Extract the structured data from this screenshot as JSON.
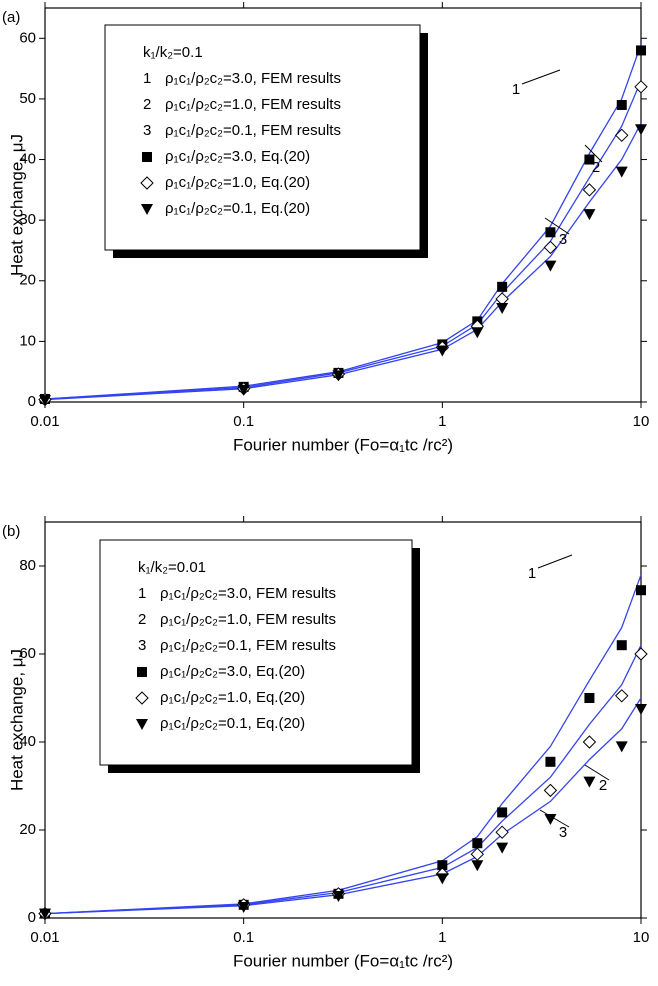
{
  "chart_data": [
    {
      "type": "line",
      "panel_label": "(a)",
      "x_label": "Fourier number (Fo=α₁tc /rc²)",
      "y_label": "Heat exchange, μJ",
      "x_log": true,
      "xlim": [
        0.01,
        10
      ],
      "xticks": [
        0.01,
        0.1,
        1,
        10
      ],
      "ylim": [
        0,
        65
      ],
      "yticks": [
        0,
        10,
        20,
        30,
        40,
        50,
        60
      ],
      "legend_title": "k₁/k₂=0.1",
      "x": [
        0.01,
        0.1,
        0.3,
        1,
        1.5,
        2,
        3.5,
        5.5,
        8,
        10
      ],
      "series": [
        {
          "type": "line",
          "label": "1",
          "name": "ρ₁c₁/ρ₂c₂=3.0, FEM results",
          "color": "#3344ee",
          "values": [
            0.5,
            2.6,
            5,
            9.8,
            13.5,
            19.5,
            29,
            41,
            50,
            59
          ]
        },
        {
          "type": "line",
          "label": "2",
          "name": "ρ₁c₁/ρ₂c₂=1.0, FEM results",
          "color": "#3344ee",
          "values": [
            0.5,
            2.4,
            4.8,
            9.2,
            12.8,
            18,
            26.5,
            37,
            45.5,
            53
          ]
        },
        {
          "type": "line",
          "label": "3",
          "name": "ρ₁c₁/ρ₂c₂=0.1, FEM results",
          "color": "#3344ee",
          "values": [
            0.4,
            2.2,
            4.5,
            8.7,
            12,
            16.5,
            24,
            33,
            40,
            46
          ]
        },
        {
          "type": "scatter",
          "marker": "square",
          "name": "ρ₁c₁/ρ₂c₂=3.0, Eq.(20)",
          "color": "#000000",
          "values": [
            0.5,
            2.5,
            4.8,
            9.5,
            13.3,
            19,
            28,
            40,
            49,
            58
          ]
        },
        {
          "type": "scatter",
          "marker": "diamond",
          "name": "ρ₁c₁/ρ₂c₂=1.0, Eq.(20)",
          "color": "#000000",
          "values": [
            0.4,
            2.2,
            4.6,
            9,
            12.5,
            17,
            25.5,
            35,
            44,
            52
          ]
        },
        {
          "type": "scatter",
          "marker": "triangle-down",
          "name": "ρ₁c₁/ρ₂c₂=0.1, Eq.(20)",
          "color": "#000000",
          "values": [
            0.3,
            2,
            4.4,
            8.5,
            11.5,
            15.5,
            22.5,
            31,
            38,
            45
          ]
        }
      ]
    },
    {
      "type": "line",
      "panel_label": "(b)",
      "x_label": "Fourier number (Fo=α₁tc /rc²)",
      "y_label": "Heat exchange, μJ",
      "x_log": true,
      "xlim": [
        0.01,
        10
      ],
      "xticks": [
        0.01,
        0.1,
        1,
        10
      ],
      "ylim": [
        0,
        90
      ],
      "yticks": [
        0,
        20,
        40,
        60,
        80
      ],
      "legend_title": "k₁/k₂=0.01",
      "x": [
        0.01,
        0.1,
        0.3,
        1,
        1.5,
        2,
        3.5,
        5.5,
        8,
        10
      ],
      "series": [
        {
          "type": "line",
          "label": "1",
          "name": "ρ₁c₁/ρ₂c₂=3.0, FEM results",
          "color": "#3344ee",
          "values": [
            1,
            3.2,
            6.3,
            13,
            18.5,
            26,
            39,
            54,
            66,
            78
          ]
        },
        {
          "type": "line",
          "label": "2",
          "name": "ρ₁c₁/ρ₂c₂=1.0, FEM results",
          "color": "#3344ee",
          "values": [
            1,
            3,
            5.8,
            11.5,
            16,
            22,
            32,
            44,
            53,
            62
          ]
        },
        {
          "type": "line",
          "label": "3",
          "name": "ρ₁c₁/ρ₂c₂=0.1, FEM results",
          "color": "#3344ee",
          "values": [
            1,
            2.8,
            5.3,
            10,
            14,
            19,
            26.5,
            36,
            43,
            50
          ]
        },
        {
          "type": "scatter",
          "marker": "square",
          "name": "ρ₁c₁/ρ₂c₂=3.0, Eq.(20)",
          "color": "#000000",
          "values": [
            1,
            3,
            5.5,
            12,
            17,
            24,
            35.5,
            50,
            62,
            74.5
          ]
        },
        {
          "type": "scatter",
          "marker": "diamond",
          "name": "ρ₁c₁/ρ₂c₂=1.0, Eq.(20)",
          "color": "#000000",
          "values": [
            1,
            3,
            5.5,
            10,
            14.5,
            19.5,
            29,
            40,
            50.5,
            60
          ]
        },
        {
          "type": "scatter",
          "marker": "triangle-down",
          "name": "ρ₁c₁/ρ₂c₂=0.1, Eq.(20)",
          "color": "#000000",
          "values": [
            1,
            2.5,
            5,
            9,
            12,
            16,
            22.5,
            31,
            39,
            47.5
          ]
        }
      ]
    }
  ]
}
